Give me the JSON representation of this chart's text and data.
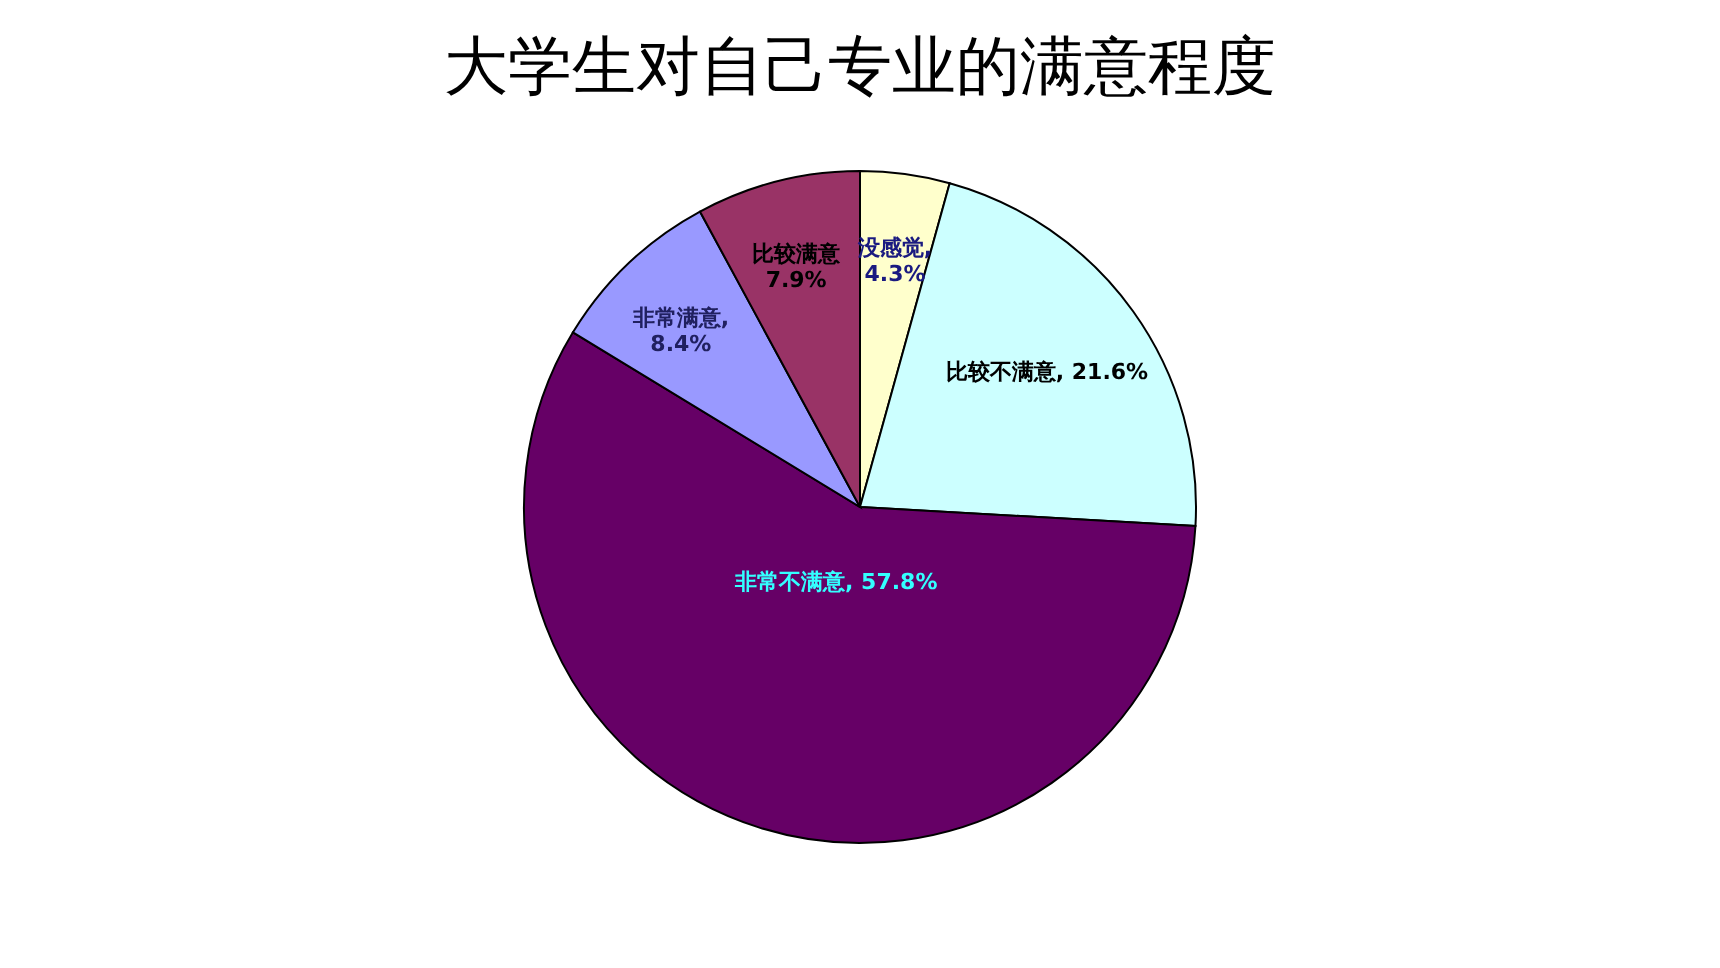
{
  "chart_data": {
    "type": "pie",
    "title": "大学生对自己专业的满意程度",
    "categories": [
      "没感觉",
      "比较不满意",
      "非常不满意",
      "非常满意",
      "比较满意"
    ],
    "values": [
      4.3,
      21.6,
      57.8,
      8.4,
      7.9
    ],
    "colors": [
      "#ffffcc",
      "#ccffff",
      "#660066",
      "#9999ff",
      "#993366"
    ],
    "value_labels": [
      ",\n4.3%",
      ", 21.6%",
      ", 57.8%",
      ",\n8.4%",
      "\n7.9%"
    ],
    "legend": false
  }
}
